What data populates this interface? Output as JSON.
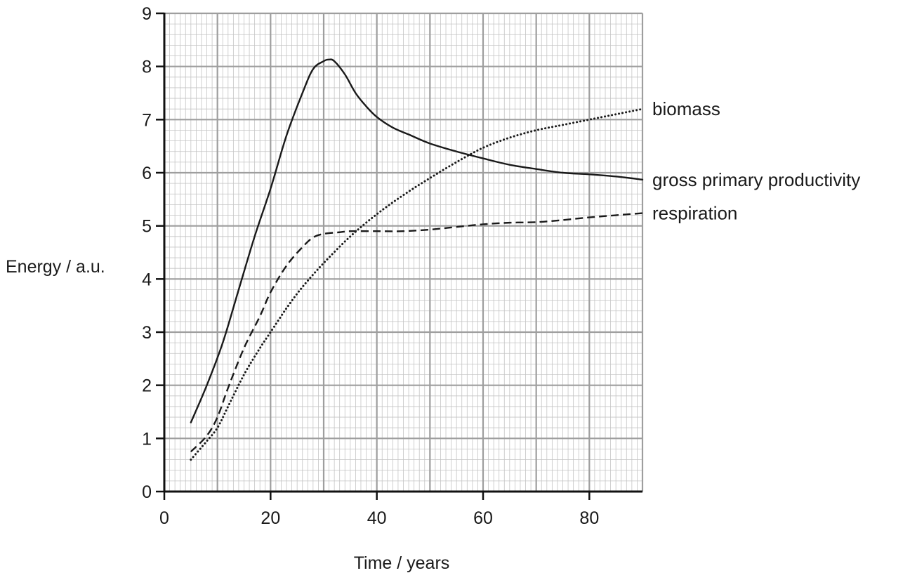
{
  "chart_data": {
    "type": "line",
    "title": "",
    "xlabel": "Time / years",
    "ylabel": "Energy / a.u.",
    "xlim": [
      0,
      90
    ],
    "ylim": [
      0,
      9
    ],
    "x_ticks": [
      0,
      20,
      40,
      60,
      80
    ],
    "y_ticks": [
      0,
      1,
      2,
      3,
      4,
      5,
      6,
      7,
      8,
      9
    ],
    "x_tick_labels": [
      "0",
      "20",
      "40",
      "60",
      "80"
    ],
    "y_tick_labels": [
      "0",
      "1",
      "2",
      "3",
      "4",
      "5",
      "6",
      "7",
      "8",
      "9"
    ],
    "grid": true,
    "legend": "labels at right end of each line",
    "series": [
      {
        "name": "gross primary productivity",
        "style": "solid",
        "x": [
          5,
          8,
          11,
          14,
          17,
          20,
          23,
          26,
          28,
          30,
          31,
          32,
          34,
          36,
          38,
          40,
          43,
          46,
          50,
          55,
          60,
          65,
          70,
          75,
          80,
          85,
          90
        ],
        "y": [
          1.3,
          2.0,
          2.8,
          3.8,
          4.8,
          5.7,
          6.7,
          7.5,
          7.95,
          8.1,
          8.13,
          8.1,
          7.85,
          7.5,
          7.25,
          7.05,
          6.85,
          6.72,
          6.55,
          6.4,
          6.27,
          6.15,
          6.07,
          6.0,
          5.97,
          5.93,
          5.87
        ]
      },
      {
        "name": "respiration",
        "style": "dashed",
        "x": [
          5,
          8,
          10,
          12,
          15,
          18,
          20,
          23,
          26,
          28,
          30,
          33,
          35,
          40,
          45,
          50,
          55,
          60,
          65,
          70,
          75,
          80,
          85,
          90
        ],
        "y": [
          0.75,
          1.05,
          1.4,
          1.95,
          2.7,
          3.3,
          3.75,
          4.25,
          4.6,
          4.78,
          4.85,
          4.88,
          4.9,
          4.9,
          4.9,
          4.93,
          4.98,
          5.03,
          5.06,
          5.07,
          5.11,
          5.16,
          5.2,
          5.24
        ]
      },
      {
        "name": "biomass",
        "style": "dotted",
        "x": [
          5,
          8,
          10,
          12,
          15,
          18,
          20,
          23,
          26,
          30,
          35,
          40,
          45,
          50,
          55,
          60,
          65,
          70,
          75,
          80,
          85,
          90
        ],
        "y": [
          0.6,
          0.95,
          1.2,
          1.6,
          2.2,
          2.7,
          3.0,
          3.45,
          3.85,
          4.3,
          4.8,
          5.22,
          5.58,
          5.9,
          6.2,
          6.47,
          6.66,
          6.8,
          6.9,
          7.0,
          7.1,
          7.2
        ]
      }
    ]
  }
}
